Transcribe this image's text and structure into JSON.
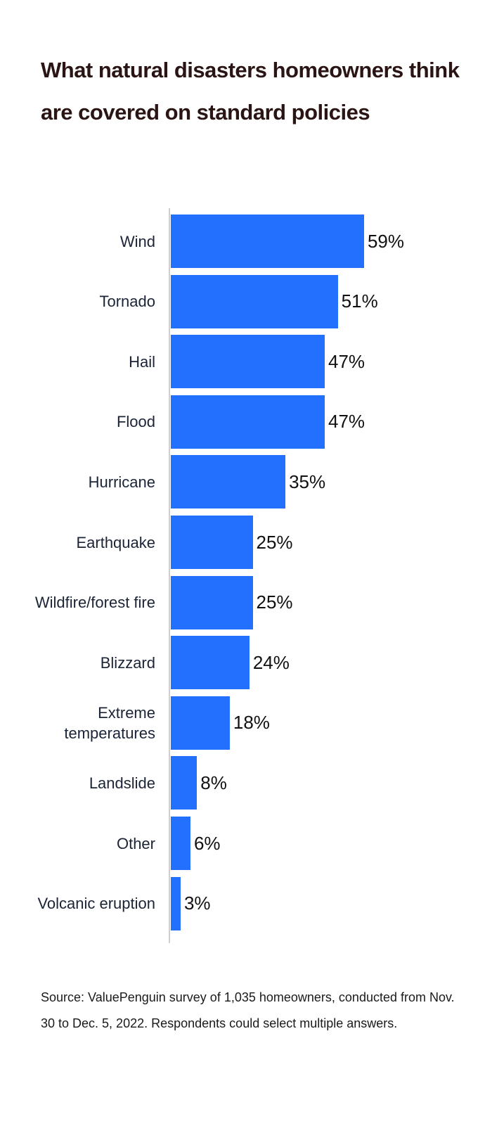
{
  "title": "What natural disasters homeowners think are covered on standard policies",
  "source": "Source: ValuePenguin survey of 1,035 homeowners, conducted from Nov. 30 to Dec. 5, 2022. Respondents could select multiple answers.",
  "colors": {
    "bar": "#2270fd",
    "title": "#2a1414",
    "label": "#1b2436",
    "axis": "#cfcfcf"
  },
  "chart_data": {
    "type": "bar",
    "orientation": "horizontal",
    "title": "What natural disasters homeowners think are covered on standard policies",
    "xlabel": "",
    "ylabel": "",
    "categories": [
      "Wind",
      "Tornado",
      "Hail",
      "Flood",
      "Hurricane",
      "Earthquake",
      "Wildfire/forest fire",
      "Blizzard",
      "Extreme temperatures",
      "Landslide",
      "Other",
      "Volcanic eruption"
    ],
    "values": [
      59,
      51,
      47,
      47,
      35,
      25,
      25,
      24,
      18,
      8,
      6,
      3
    ],
    "value_labels": [
      "59%",
      "51%",
      "47%",
      "47%",
      "35%",
      "25%",
      "25%",
      "24%",
      "18%",
      "8%",
      "6%",
      "3%"
    ],
    "unit": "%",
    "xlim": [
      0,
      60
    ],
    "grid": false,
    "legend": null
  }
}
